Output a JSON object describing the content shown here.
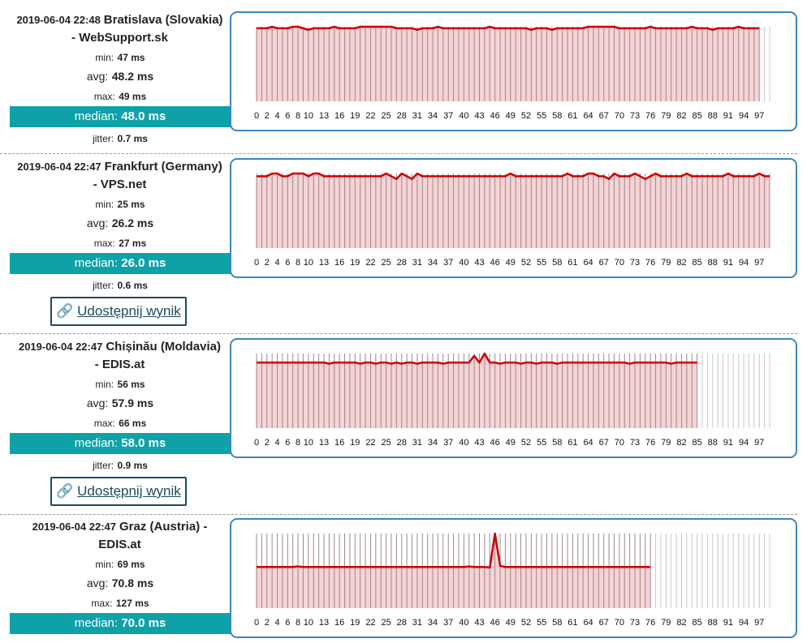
{
  "labels": {
    "min": "min:",
    "avg": "avg:",
    "max": "max:",
    "median": "median:",
    "jitter": "jitter:",
    "share": "Udostępnij wynik"
  },
  "results": [
    {
      "timestamp": "2019-06-04 22:48",
      "location": "Bratislava (Slovakia) - WebSupport.sk",
      "min": "47 ms",
      "avg": "48.2 ms",
      "max": "49 ms",
      "median": "48.0 ms",
      "jitter": "0.7 ms"
    },
    {
      "timestamp": "2019-06-04 22:47",
      "location": "Frankfurt (Germany) - VPS.net",
      "min": "25 ms",
      "avg": "26.2 ms",
      "max": "27 ms",
      "median": "26.0 ms",
      "jitter": "0.6 ms",
      "share": true
    },
    {
      "timestamp": "2019-06-04 22:47",
      "location": "Chișinău (Moldavia) - EDIS.at",
      "min": "56 ms",
      "avg": "57.9 ms",
      "max": "66 ms",
      "median": "58.0 ms",
      "jitter": "0.9 ms",
      "share": true
    },
    {
      "timestamp": "2019-06-04 22:47",
      "location": "Graz (Austria) - EDIS.at",
      "min": "69 ms",
      "avg": "70.8 ms",
      "max": "127 ms",
      "median": "70.0 ms"
    }
  ],
  "chart_data": [
    {
      "type": "line",
      "color": "#cc0000",
      "fill": "#f6d3d5",
      "grid": true,
      "xlim": [
        0,
        99
      ],
      "xticks": [
        0,
        2,
        4,
        6,
        8,
        10,
        13,
        16,
        19,
        22,
        25,
        28,
        31,
        34,
        37,
        40,
        43,
        46,
        49,
        52,
        55,
        58,
        61,
        64,
        67,
        70,
        73,
        76,
        79,
        82,
        85,
        88,
        91,
        94,
        97
      ],
      "values": [
        48,
        48,
        48,
        49,
        48,
        48,
        48,
        49,
        49,
        48,
        47,
        48,
        48,
        48,
        48,
        49,
        48,
        48,
        48,
        48,
        49,
        49,
        49,
        49,
        49,
        49,
        49,
        48,
        48,
        48,
        48,
        47,
        48,
        48,
        48,
        49,
        48,
        48,
        48,
        48,
        48,
        48,
        48,
        48,
        48,
        49,
        48,
        48,
        48,
        48,
        48,
        48,
        48,
        47,
        48,
        48,
        48,
        47,
        48,
        48,
        48,
        48,
        48,
        48,
        49,
        49,
        49,
        49,
        49,
        49,
        48,
        48,
        48,
        48,
        48,
        48,
        49,
        48,
        48,
        48,
        48,
        48,
        48,
        48,
        49,
        48,
        48,
        48,
        47,
        48,
        48,
        48,
        48,
        49,
        48,
        48,
        48,
        48
      ]
    },
    {
      "type": "line",
      "color": "#cc0000",
      "fill": "#f6d3d5",
      "grid": true,
      "xlim": [
        0,
        99
      ],
      "xticks": [
        0,
        2,
        4,
        6,
        8,
        10,
        13,
        16,
        19,
        22,
        25,
        28,
        31,
        34,
        37,
        40,
        43,
        46,
        49,
        52,
        55,
        58,
        61,
        64,
        67,
        70,
        73,
        76,
        79,
        82,
        85,
        88,
        91,
        94,
        97
      ],
      "values": [
        26,
        26,
        26,
        27,
        27,
        26,
        26,
        27,
        27,
        27,
        26,
        27,
        27,
        26,
        26,
        26,
        26,
        26,
        26,
        26,
        26,
        26,
        26,
        26,
        26,
        27,
        26,
        25,
        27,
        26,
        25,
        27,
        26,
        26,
        26,
        26,
        26,
        26,
        26,
        26,
        26,
        26,
        26,
        26,
        26,
        26,
        26,
        26,
        26,
        27,
        26,
        26,
        26,
        26,
        26,
        26,
        26,
        26,
        26,
        26,
        27,
        26,
        26,
        26,
        27,
        27,
        26,
        26,
        25,
        27,
        26,
        26,
        26,
        27,
        26,
        25,
        26,
        27,
        26,
        26,
        26,
        26,
        26,
        27,
        26,
        26,
        26,
        26,
        26,
        26,
        26,
        27,
        26,
        26,
        26,
        26,
        26,
        27,
        26,
        26
      ]
    },
    {
      "type": "line",
      "color": "#cc0000",
      "fill": "#f6d3d5",
      "grid": true,
      "xlim": [
        0,
        99
      ],
      "xticks": [
        0,
        2,
        4,
        6,
        8,
        10,
        13,
        16,
        19,
        22,
        25,
        28,
        31,
        34,
        37,
        40,
        43,
        46,
        49,
        52,
        55,
        58,
        61,
        64,
        67,
        70,
        73,
        76,
        79,
        82,
        85,
        88,
        91,
        94,
        97
      ],
      "values": [
        58,
        58,
        58,
        58,
        58,
        58,
        58,
        58,
        58,
        58,
        58,
        58,
        58,
        58,
        57,
        58,
        58,
        58,
        58,
        58,
        57,
        58,
        58,
        57,
        58,
        58,
        57,
        58,
        57,
        58,
        58,
        57,
        58,
        58,
        58,
        58,
        57,
        58,
        58,
        58,
        58,
        58,
        64,
        58,
        66,
        58,
        58,
        57,
        58,
        58,
        58,
        57,
        58,
        58,
        57,
        58,
        58,
        58,
        57,
        58,
        58,
        58,
        58,
        58,
        58,
        58,
        58,
        58,
        58,
        58,
        58,
        58,
        57,
        58,
        58,
        58,
        58,
        58,
        58,
        58,
        57,
        58,
        58,
        58,
        58,
        58
      ]
    },
    {
      "type": "line",
      "color": "#cc0000",
      "fill": "#f6d3d5",
      "grid": true,
      "xlim": [
        0,
        99
      ],
      "xticks": [
        0,
        2,
        4,
        6,
        8,
        10,
        13,
        16,
        19,
        22,
        25,
        28,
        31,
        34,
        37,
        40,
        43,
        46,
        49,
        52,
        55,
        58,
        61,
        64,
        67,
        70,
        73,
        76,
        79,
        82,
        85,
        88,
        91,
        94,
        97
      ],
      "values": [
        70,
        70,
        70,
        70,
        70,
        70,
        70,
        70,
        71,
        70,
        70,
        70,
        70,
        70,
        70,
        70,
        70,
        70,
        70,
        70,
        70,
        70,
        70,
        70,
        70,
        70,
        70,
        70,
        70,
        70,
        70,
        70,
        70,
        70,
        70,
        70,
        70,
        70,
        70,
        70,
        70,
        71,
        70,
        70,
        70,
        69,
        127,
        72,
        70,
        70,
        70,
        70,
        70,
        70,
        70,
        70,
        70,
        70,
        70,
        70,
        70,
        70,
        70,
        70,
        70,
        70,
        70,
        70,
        70,
        70,
        70,
        70,
        70,
        70,
        70,
        70,
        70
      ]
    }
  ]
}
